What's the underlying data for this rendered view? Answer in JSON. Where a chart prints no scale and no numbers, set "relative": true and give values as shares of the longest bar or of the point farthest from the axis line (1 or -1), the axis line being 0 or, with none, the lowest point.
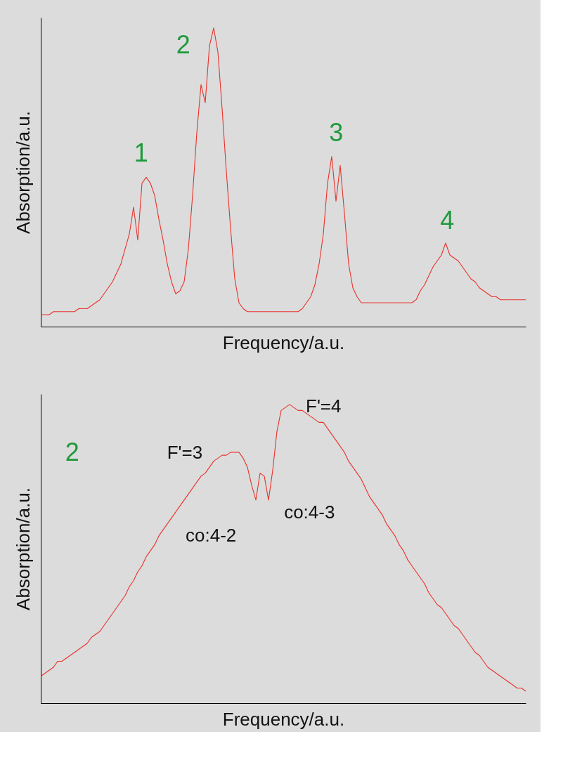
{
  "chart_data": [
    {
      "type": "line",
      "relative": true,
      "xlabel": "Frequency/a.u.",
      "ylabel": "Absorption/a.u.",
      "annotations": [
        "1",
        "2",
        "3",
        "4"
      ],
      "categories": [
        null,
        null,
        null,
        null,
        null,
        null,
        null,
        null,
        null,
        null,
        null,
        null,
        null,
        null,
        null,
        null,
        null,
        null,
        null,
        null,
        null,
        null,
        null,
        null,
        null,
        null,
        null,
        null,
        null,
        null,
        null,
        null,
        null,
        null,
        null,
        null,
        null,
        null,
        null,
        null,
        null,
        null,
        null,
        null,
        null,
        null,
        null,
        null,
        null,
        null,
        null,
        null,
        null,
        null,
        null,
        null,
        null,
        null,
        null,
        null,
        null,
        null,
        null,
        null,
        null,
        null,
        null,
        null,
        null,
        null,
        null,
        null,
        null,
        null,
        null,
        null,
        null,
        null,
        null,
        null,
        null,
        null,
        null,
        null,
        null,
        null,
        null,
        null,
        null,
        null,
        null,
        null,
        null,
        null,
        null,
        null,
        null,
        null,
        null,
        null,
        null,
        null,
        null,
        null,
        null,
        null,
        null,
        null,
        null,
        null,
        null,
        null,
        null,
        null,
        null,
        null
      ],
      "series": [
        {
          "color": "#e8322b",
          "values": [
            0.04,
            0.04,
            0.04,
            0.05,
            0.05,
            0.05,
            0.05,
            0.05,
            0.05,
            0.06,
            0.06,
            0.06,
            0.07,
            0.08,
            0.09,
            0.11,
            0.13,
            0.15,
            0.18,
            0.21,
            0.26,
            0.31,
            0.4,
            0.29,
            0.48,
            0.5,
            0.48,
            0.44,
            0.36,
            0.29,
            0.21,
            0.15,
            0.11,
            0.12,
            0.15,
            0.26,
            0.44,
            0.65,
            0.81,
            0.75,
            0.94,
            1.0,
            0.92,
            0.73,
            0.52,
            0.33,
            0.16,
            0.08,
            0.06,
            0.05,
            0.05,
            0.05,
            0.05,
            0.05,
            0.05,
            0.05,
            0.05,
            0.05,
            0.05,
            0.05,
            0.05,
            0.05,
            0.06,
            0.08,
            0.1,
            0.14,
            0.21,
            0.31,
            0.48,
            0.57,
            0.42,
            0.54,
            0.38,
            0.21,
            0.13,
            0.1,
            0.08,
            0.08,
            0.08,
            0.08,
            0.08,
            0.08,
            0.08,
            0.08,
            0.08,
            0.08,
            0.08,
            0.08,
            0.08,
            0.09,
            0.12,
            0.14,
            0.17,
            0.2,
            0.22,
            0.24,
            0.28,
            0.24,
            0.23,
            0.22,
            0.2,
            0.18,
            0.16,
            0.15,
            0.13,
            0.12,
            0.11,
            0.1,
            0.1,
            0.09,
            0.09,
            0.09,
            0.09,
            0.09,
            0.09,
            0.09
          ]
        }
      ]
    },
    {
      "type": "line",
      "relative": true,
      "xlabel": "Frequency/a.u.",
      "ylabel": "Absorption/a.u.",
      "annotations": [
        "2",
        "F'=3",
        "F'=4",
        "co:4-2",
        "co:4-3"
      ],
      "categories": [
        null,
        null,
        null,
        null,
        null,
        null,
        null,
        null,
        null,
        null,
        null,
        null,
        null,
        null,
        null,
        null,
        null,
        null,
        null,
        null,
        null,
        null,
        null,
        null,
        null,
        null,
        null,
        null,
        null,
        null,
        null,
        null,
        null,
        null,
        null,
        null,
        null,
        null,
        null,
        null,
        null,
        null,
        null,
        null,
        null,
        null,
        null,
        null,
        null,
        null,
        null,
        null,
        null,
        null,
        null,
        null,
        null,
        null,
        null,
        null,
        null,
        null,
        null,
        null,
        null,
        null,
        null,
        null,
        null,
        null,
        null,
        null,
        null,
        null,
        null,
        null,
        null,
        null,
        null,
        null,
        null,
        null,
        null,
        null,
        null,
        null,
        null,
        null,
        null,
        null,
        null,
        null,
        null,
        null,
        null,
        null,
        null,
        null,
        null,
        null,
        null,
        null,
        null,
        null,
        null,
        null,
        null,
        null,
        null,
        null,
        null,
        null,
        null,
        null,
        null,
        null
      ],
      "series": [
        {
          "color": "#e8322b",
          "values": [
            0.09,
            0.1,
            0.11,
            0.12,
            0.14,
            0.14,
            0.15,
            0.16,
            0.17,
            0.18,
            0.19,
            0.2,
            0.22,
            0.23,
            0.24,
            0.26,
            0.28,
            0.3,
            0.32,
            0.34,
            0.36,
            0.39,
            0.41,
            0.44,
            0.46,
            0.49,
            0.51,
            0.53,
            0.56,
            0.58,
            0.6,
            0.62,
            0.64,
            0.66,
            0.68,
            0.7,
            0.72,
            0.74,
            0.76,
            0.77,
            0.79,
            0.81,
            0.82,
            0.83,
            0.83,
            0.84,
            0.84,
            0.84,
            0.82,
            0.79,
            0.73,
            0.68,
            0.77,
            0.76,
            0.68,
            0.78,
            0.91,
            0.98,
            0.99,
            1.0,
            0.99,
            0.98,
            0.98,
            0.97,
            0.96,
            0.95,
            0.94,
            0.94,
            0.92,
            0.9,
            0.88,
            0.86,
            0.84,
            0.81,
            0.79,
            0.77,
            0.75,
            0.72,
            0.69,
            0.67,
            0.65,
            0.63,
            0.6,
            0.58,
            0.56,
            0.53,
            0.51,
            0.48,
            0.46,
            0.44,
            0.42,
            0.4,
            0.37,
            0.35,
            0.33,
            0.32,
            0.3,
            0.28,
            0.26,
            0.25,
            0.23,
            0.21,
            0.19,
            0.17,
            0.16,
            0.14,
            0.12,
            0.11,
            0.1,
            0.09,
            0.08,
            0.07,
            0.06,
            0.05,
            0.05,
            0.04
          ]
        }
      ]
    }
  ]
}
